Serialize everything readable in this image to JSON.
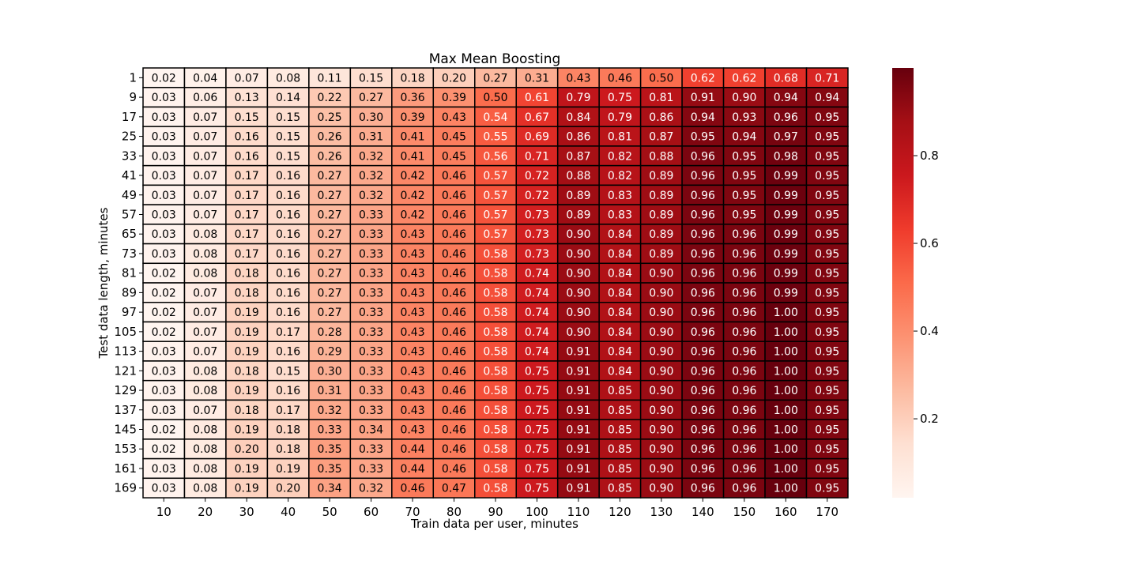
{
  "chart_data": {
    "type": "heatmap",
    "title": "Max Mean Boosting",
    "xlabel": "Train data per user, minutes",
    "ylabel": "Test data length, minutes",
    "x": [
      "10",
      "20",
      "30",
      "40",
      "50",
      "60",
      "70",
      "80",
      "90",
      "100",
      "110",
      "120",
      "130",
      "140",
      "150",
      "160",
      "170"
    ],
    "y": [
      "1",
      "9",
      "17",
      "25",
      "33",
      "41",
      "49",
      "57",
      "65",
      "73",
      "81",
      "89",
      "97",
      "105",
      "113",
      "121",
      "129",
      "137",
      "145",
      "153",
      "161",
      "169"
    ],
    "values": [
      [
        0.02,
        0.04,
        0.07,
        0.08,
        0.11,
        0.15,
        0.18,
        0.2,
        0.27,
        0.31,
        0.43,
        0.46,
        0.5,
        0.62,
        0.62,
        0.68,
        0.71
      ],
      [
        0.03,
        0.06,
        0.13,
        0.14,
        0.22,
        0.27,
        0.36,
        0.39,
        0.5,
        0.61,
        0.79,
        0.75,
        0.81,
        0.91,
        0.9,
        0.94,
        0.94
      ],
      [
        0.03,
        0.07,
        0.15,
        0.15,
        0.25,
        0.3,
        0.39,
        0.43,
        0.54,
        0.67,
        0.84,
        0.79,
        0.86,
        0.94,
        0.93,
        0.96,
        0.95
      ],
      [
        0.03,
        0.07,
        0.16,
        0.15,
        0.26,
        0.31,
        0.41,
        0.45,
        0.55,
        0.69,
        0.86,
        0.81,
        0.87,
        0.95,
        0.94,
        0.97,
        0.95
      ],
      [
        0.03,
        0.07,
        0.16,
        0.15,
        0.26,
        0.32,
        0.41,
        0.45,
        0.56,
        0.71,
        0.87,
        0.82,
        0.88,
        0.96,
        0.95,
        0.98,
        0.95
      ],
      [
        0.03,
        0.07,
        0.17,
        0.16,
        0.27,
        0.32,
        0.42,
        0.46,
        0.57,
        0.72,
        0.88,
        0.82,
        0.89,
        0.96,
        0.95,
        0.99,
        0.95
      ],
      [
        0.03,
        0.07,
        0.17,
        0.16,
        0.27,
        0.32,
        0.42,
        0.46,
        0.57,
        0.72,
        0.89,
        0.83,
        0.89,
        0.96,
        0.95,
        0.99,
        0.95
      ],
      [
        0.03,
        0.07,
        0.17,
        0.16,
        0.27,
        0.33,
        0.42,
        0.46,
        0.57,
        0.73,
        0.89,
        0.83,
        0.89,
        0.96,
        0.95,
        0.99,
        0.95
      ],
      [
        0.03,
        0.08,
        0.17,
        0.16,
        0.27,
        0.33,
        0.43,
        0.46,
        0.57,
        0.73,
        0.9,
        0.84,
        0.89,
        0.96,
        0.96,
        0.99,
        0.95
      ],
      [
        0.03,
        0.08,
        0.17,
        0.16,
        0.27,
        0.33,
        0.43,
        0.46,
        0.58,
        0.73,
        0.9,
        0.84,
        0.89,
        0.96,
        0.96,
        0.99,
        0.95
      ],
      [
        0.02,
        0.08,
        0.18,
        0.16,
        0.27,
        0.33,
        0.43,
        0.46,
        0.58,
        0.74,
        0.9,
        0.84,
        0.9,
        0.96,
        0.96,
        0.99,
        0.95
      ],
      [
        0.02,
        0.07,
        0.18,
        0.16,
        0.27,
        0.33,
        0.43,
        0.46,
        0.58,
        0.74,
        0.9,
        0.84,
        0.9,
        0.96,
        0.96,
        0.99,
        0.95
      ],
      [
        0.02,
        0.07,
        0.19,
        0.16,
        0.27,
        0.33,
        0.43,
        0.46,
        0.58,
        0.74,
        0.9,
        0.84,
        0.9,
        0.96,
        0.96,
        1.0,
        0.95
      ],
      [
        0.02,
        0.07,
        0.19,
        0.17,
        0.28,
        0.33,
        0.43,
        0.46,
        0.58,
        0.74,
        0.9,
        0.84,
        0.9,
        0.96,
        0.96,
        1.0,
        0.95
      ],
      [
        0.03,
        0.07,
        0.19,
        0.16,
        0.29,
        0.33,
        0.43,
        0.46,
        0.58,
        0.74,
        0.91,
        0.84,
        0.9,
        0.96,
        0.96,
        1.0,
        0.95
      ],
      [
        0.03,
        0.08,
        0.18,
        0.15,
        0.3,
        0.33,
        0.43,
        0.46,
        0.58,
        0.75,
        0.91,
        0.84,
        0.9,
        0.96,
        0.96,
        1.0,
        0.95
      ],
      [
        0.03,
        0.08,
        0.19,
        0.16,
        0.31,
        0.33,
        0.43,
        0.46,
        0.58,
        0.75,
        0.91,
        0.85,
        0.9,
        0.96,
        0.96,
        1.0,
        0.95
      ],
      [
        0.03,
        0.07,
        0.18,
        0.17,
        0.32,
        0.33,
        0.43,
        0.46,
        0.58,
        0.75,
        0.91,
        0.85,
        0.9,
        0.96,
        0.96,
        1.0,
        0.95
      ],
      [
        0.02,
        0.08,
        0.19,
        0.18,
        0.33,
        0.34,
        0.43,
        0.46,
        0.58,
        0.75,
        0.91,
        0.85,
        0.9,
        0.96,
        0.96,
        1.0,
        0.95
      ],
      [
        0.02,
        0.08,
        0.2,
        0.18,
        0.35,
        0.33,
        0.44,
        0.46,
        0.58,
        0.75,
        0.91,
        0.85,
        0.9,
        0.96,
        0.96,
        1.0,
        0.95
      ],
      [
        0.03,
        0.08,
        0.19,
        0.19,
        0.35,
        0.33,
        0.44,
        0.46,
        0.58,
        0.75,
        0.91,
        0.85,
        0.9,
        0.96,
        0.96,
        1.0,
        0.95
      ],
      [
        0.03,
        0.08,
        0.19,
        0.2,
        0.34,
        0.32,
        0.46,
        0.47,
        0.58,
        0.75,
        0.91,
        0.85,
        0.9,
        0.96,
        0.96,
        1.0,
        0.95
      ]
    ],
    "value_format": "0.00",
    "cell_borders": "black",
    "colormap": "Reds",
    "colorbar": {
      "range": [
        0.02,
        1.0
      ],
      "ticks": [
        0.2,
        0.4,
        0.6,
        0.8
      ],
      "tick_labels": [
        "0.2",
        "0.4",
        "0.6",
        "0.8"
      ],
      "placement": "right"
    },
    "grid": false
  }
}
